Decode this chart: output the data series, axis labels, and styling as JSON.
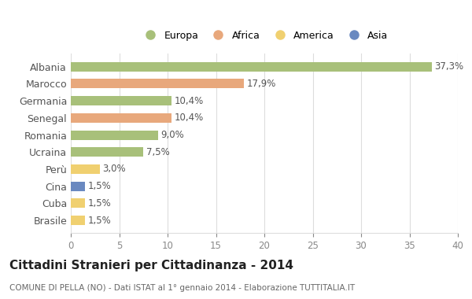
{
  "categories": [
    "Albania",
    "Marocco",
    "Germania",
    "Senegal",
    "Romania",
    "Ucraina",
    "Perù",
    "Cina",
    "Cuba",
    "Brasile"
  ],
  "values": [
    37.3,
    17.9,
    10.4,
    10.4,
    9.0,
    7.5,
    3.0,
    1.5,
    1.5,
    1.5
  ],
  "labels": [
    "37,3%",
    "17,9%",
    "10,4%",
    "10,4%",
    "9,0%",
    "7,5%",
    "3,0%",
    "1,5%",
    "1,5%",
    "1,5%"
  ],
  "colors": [
    "#a8c07a",
    "#e8a87c",
    "#a8c07a",
    "#e8a87c",
    "#a8c07a",
    "#a8c07a",
    "#f0d070",
    "#6a89c0",
    "#f0d070",
    "#f0d070"
  ],
  "legend_labels": [
    "Europa",
    "Africa",
    "America",
    "Asia"
  ],
  "legend_colors": [
    "#a8c07a",
    "#e8a87c",
    "#f0d070",
    "#6a89c0"
  ],
  "title": "Cittadini Stranieri per Cittadinanza - 2014",
  "subtitle": "COMUNE DI PELLA (NO) - Dati ISTAT al 1° gennaio 2014 - Elaborazione TUTTITALIA.IT",
  "xlim": [
    0,
    40
  ],
  "xticks": [
    0,
    5,
    10,
    15,
    20,
    25,
    30,
    35,
    40
  ],
  "background_color": "#ffffff",
  "grid_color": "#dddddd",
  "bar_height": 0.55
}
